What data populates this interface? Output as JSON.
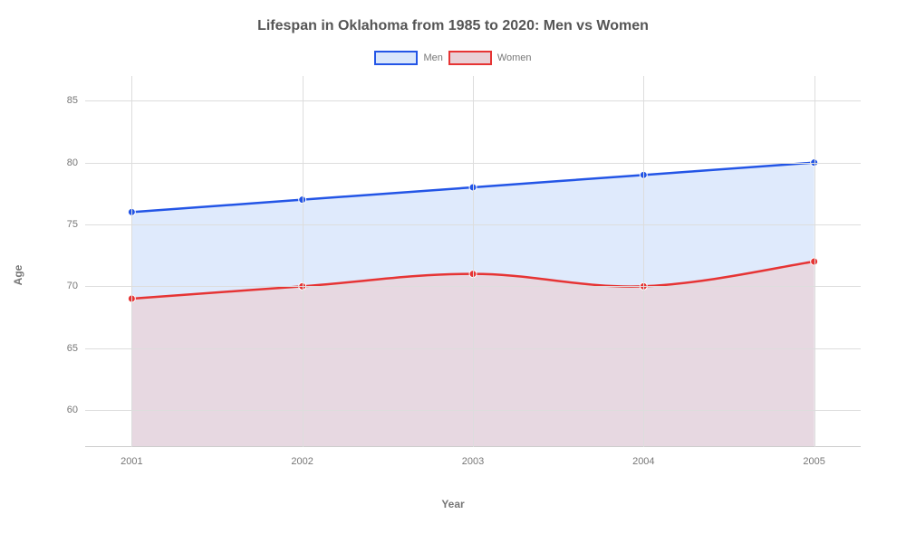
{
  "chart": {
    "type": "area",
    "title": "Lifespan in Oklahoma from 1985 to 2020: Men vs Women",
    "title_fontsize": 16,
    "title_color": "#555555",
    "xlabel": "Year",
    "ylabel": "Age",
    "label_fontsize": 12,
    "label_color": "#777777",
    "background_color": "#ffffff",
    "grid_color": "#dddddd",
    "tick_fontsize": 11,
    "tick_color": "#777777",
    "x_categories": [
      "2001",
      "2002",
      "2003",
      "2004",
      "2005"
    ],
    "ylim": [
      57,
      87
    ],
    "yticks": [
      60,
      65,
      70,
      75,
      80,
      85
    ],
    "legend_position": "top-center",
    "legend_swatch_width": 48,
    "legend_swatch_height": 16,
    "line_width": 2.5,
    "marker_radius": 4,
    "series": [
      {
        "name": "Men",
        "color": "#2355e6",
        "fill_color": "#d9e6fb",
        "fill_opacity": 0.85,
        "values": [
          76,
          77,
          78,
          79,
          80
        ]
      },
      {
        "name": "Women",
        "color": "#e63434",
        "fill_color": "#e9d0d6",
        "fill_opacity": 0.7,
        "values": [
          69,
          70,
          71,
          70,
          72
        ]
      }
    ]
  }
}
